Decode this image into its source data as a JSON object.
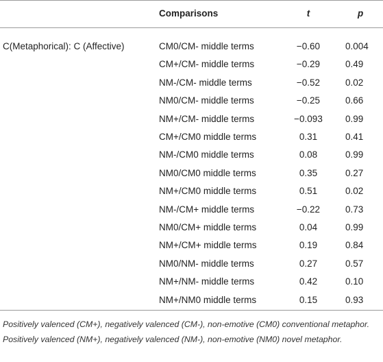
{
  "header": {
    "comparisons": "Comparisons",
    "t": "t",
    "p": "p"
  },
  "group": "C(Metaphorical): C (Affective)",
  "rows": [
    [
      "CM0/CM- middle terms",
      "−0.60",
      "0.004"
    ],
    [
      "CM+/CM- middle terms",
      "−0.29",
      "0.49"
    ],
    [
      "NM-/CM- middle terms",
      "−0.52",
      "0.02"
    ],
    [
      "NM0/CM- middle terms",
      "−0.25",
      "0.66"
    ],
    [
      "NM+/CM- middle terms",
      "−0.093",
      "0.99"
    ],
    [
      "CM+/CM0 middle terms",
      "0.31",
      "0.41"
    ],
    [
      "NM-/CM0 middle terms",
      "0.08",
      "0.99"
    ],
    [
      "NM0/CM0 middle terms",
      "0.35",
      "0.27"
    ],
    [
      "NM+/CM0 middle terms",
      "0.51",
      "0.02"
    ],
    [
      "NM-/CM+ middle terms",
      "−0.22",
      "0.73"
    ],
    [
      "NM0/CM+ middle terms",
      "0.04",
      "0.99"
    ],
    [
      "NM+/CM+ middle terms",
      "0.19",
      "0.84"
    ],
    [
      "NM0/NM- middle terms",
      "0.27",
      "0.57"
    ],
    [
      "NM+/NM- middle terms",
      "0.42",
      "0.10"
    ],
    [
      "NM+/NM0 middle terms",
      "0.15",
      "0.93"
    ]
  ],
  "footnote": "Positively valenced (CM+), negatively valenced (CM-), non-emotive (CM0) conventional metaphor. Positively valenced (NM+), negatively valenced (NM-), non-emotive (NM0) novel metaphor."
}
